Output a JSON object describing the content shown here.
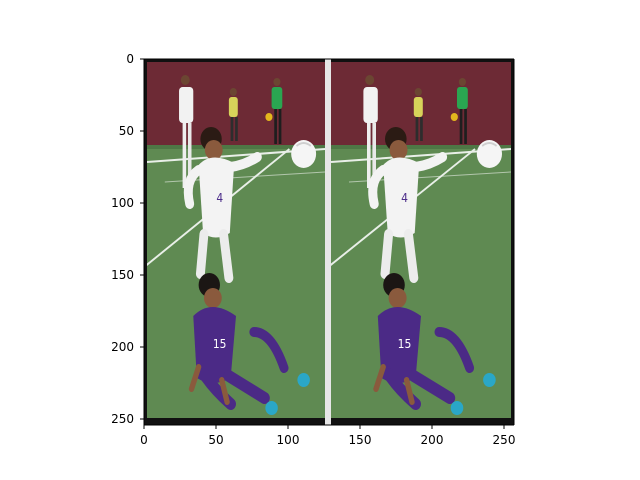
{
  "image_extent": {
    "x": [
      0,
      256
    ],
    "y": [
      256,
      0
    ]
  },
  "axes": {
    "x_ticks": [
      0,
      50,
      100,
      150,
      200,
      250
    ],
    "y_ticks": [
      0,
      50,
      100,
      150,
      200,
      250
    ],
    "x_tick_labels": [
      "0",
      "50",
      "100",
      "150",
      "200",
      "250"
    ],
    "y_tick_labels": [
      "0",
      "50",
      "100",
      "150",
      "200",
      "250"
    ]
  },
  "panels": [
    {
      "x_range": [
        2,
        125
      ],
      "label": "left-photo"
    },
    {
      "x_range": [
        129,
        253
      ],
      "label": "right-photo"
    }
  ],
  "colors": {
    "field_grass": "#5f8a52",
    "wall": "#6d2a35",
    "white_jersey": "#f1f1f1",
    "purple_jersey": "#4b2a86",
    "ball": "#f5f5f5",
    "line": "#f0f0f0"
  }
}
